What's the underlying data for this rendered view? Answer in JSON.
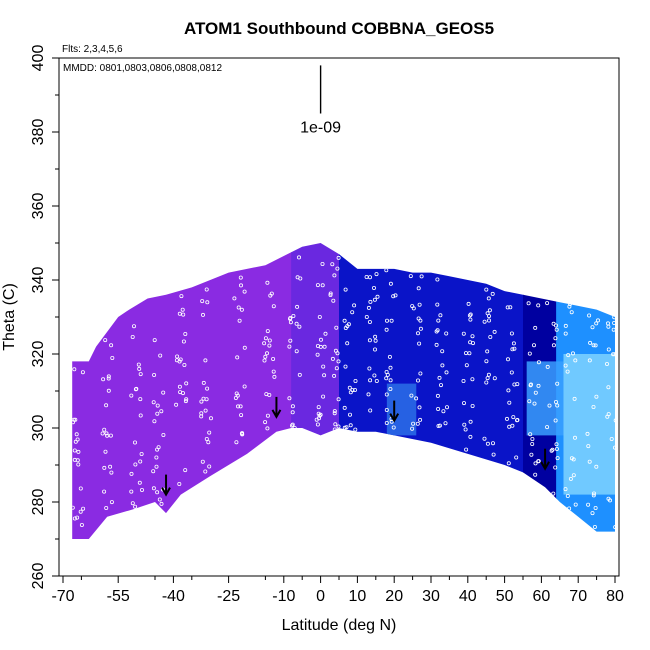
{
  "chart_data": {
    "type": "heatmap",
    "title": "ATOM1 Southbound COBBNA_GEOS5",
    "flights_note": "Flts: 2,3,4,5,6",
    "dates_note": "MMDD: 0801,0803,0806,0808,0812",
    "xlabel": "Latitude (deg N)",
    "ylabel": "Theta (C)",
    "xlim": [
      -70,
      80
    ],
    "ylim": [
      260,
      400
    ],
    "xticks": [
      -70,
      -55,
      -40,
      -25,
      -10,
      0,
      10,
      20,
      30,
      40,
      50,
      60,
      70,
      80
    ],
    "yticks": [
      260,
      280,
      300,
      320,
      340,
      360,
      380,
      400
    ],
    "scale_label": "1e-09",
    "scale_bar_theta": [
      385,
      398
    ],
    "scale_bar_lat": 0,
    "colors": {
      "violet": "#8a2be2",
      "purple": "#6a28e0",
      "blue": "#0a14c8",
      "navy": "#0000a0",
      "cyan": "#1e90ff",
      "light_cyan": "#7fd4ff",
      "points": "#ffffff",
      "arrows": "#000000"
    },
    "surface_boundary": [
      [
        -67.5,
        270
      ],
      [
        -63,
        270
      ],
      [
        -58,
        276
      ],
      [
        -51,
        278
      ],
      [
        -45,
        280
      ],
      [
        -42,
        277
      ],
      [
        -38,
        282
      ],
      [
        -30,
        287
      ],
      [
        -20,
        293
      ],
      [
        -12,
        299
      ],
      [
        -8,
        300
      ],
      [
        -5,
        300
      ],
      [
        0,
        298
      ],
      [
        5,
        300
      ],
      [
        10,
        299
      ],
      [
        15,
        299
      ],
      [
        20,
        298
      ],
      [
        30,
        296
      ],
      [
        40,
        293
      ],
      [
        50,
        290
      ],
      [
        55,
        288
      ],
      [
        61,
        284
      ],
      [
        65,
        280
      ],
      [
        70,
        276
      ],
      [
        75,
        272
      ],
      [
        80,
        272
      ]
    ],
    "top_boundary": [
      [
        -67.5,
        318
      ],
      [
        -63,
        318
      ],
      [
        -61,
        322
      ],
      [
        -58,
        326
      ],
      [
        -55,
        330
      ],
      [
        -52,
        332
      ],
      [
        -47,
        335
      ],
      [
        -42,
        336
      ],
      [
        -35,
        338
      ],
      [
        -25,
        342
      ],
      [
        -15,
        344
      ],
      [
        -5,
        349
      ],
      [
        0,
        350
      ],
      [
        5,
        347
      ],
      [
        10,
        343
      ],
      [
        15,
        343
      ],
      [
        20,
        343
      ],
      [
        25,
        342
      ],
      [
        30,
        342
      ],
      [
        35,
        341
      ],
      [
        40,
        340
      ],
      [
        45,
        339
      ],
      [
        50,
        337
      ],
      [
        55,
        336
      ],
      [
        60,
        335
      ],
      [
        65,
        334
      ],
      [
        70,
        333
      ],
      [
        75,
        332
      ],
      [
        80,
        330
      ],
      [
        80,
        320
      ],
      [
        80,
        310
      ],
      [
        80,
        300
      ],
      [
        80,
        290
      ]
    ],
    "bands": [
      {
        "name": "violet",
        "lat_range": [
          -70,
          -8
        ],
        "color": "#8a2be2"
      },
      {
        "name": "purple",
        "lat_range": [
          -8,
          5
        ],
        "color": "#6a28e0"
      },
      {
        "name": "blue",
        "lat_range": [
          5,
          55
        ],
        "color": "#0a14c8"
      },
      {
        "name": "navy",
        "lat_range": [
          55,
          64
        ],
        "color": "#0000a0"
      },
      {
        "name": "cyan",
        "lat_range": [
          64,
          80
        ],
        "color": "#1e90ff"
      }
    ],
    "highlights": [
      {
        "lat_range": [
          18,
          26
        ],
        "theta_range": [
          298,
          312
        ],
        "color": "#2b6fe8"
      },
      {
        "lat_range": [
          56,
          66
        ],
        "theta_range": [
          298,
          318
        ],
        "color": "#3aa0ff"
      },
      {
        "lat_range": [
          66,
          80
        ],
        "theta_range": [
          282,
          320
        ],
        "color": "#7fd4ff"
      }
    ],
    "tropopause_arrows": [
      {
        "lat": -42,
        "theta": 282
      },
      {
        "lat": -12,
        "theta": 303
      },
      {
        "lat": 20,
        "theta": 302
      },
      {
        "lat": 61,
        "theta": 289
      }
    ],
    "flight_tracks_lat": [
      -66,
      -58,
      -50,
      -44,
      -38,
      -31,
      -22,
      -14,
      -7,
      0,
      4,
      8,
      14,
      19,
      26,
      33,
      40,
      46,
      52,
      58,
      63,
      68,
      74,
      79
    ]
  }
}
